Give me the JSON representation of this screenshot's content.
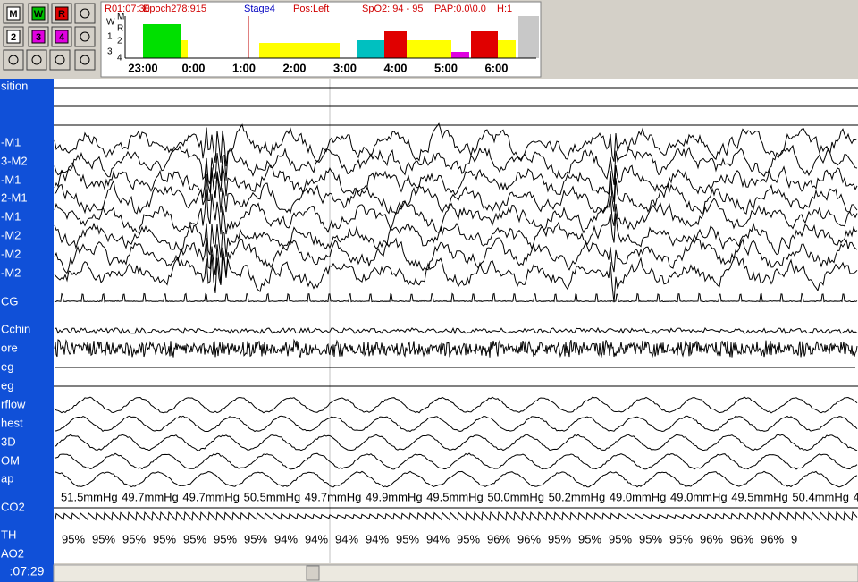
{
  "toolbar": {
    "buttons": [
      "M",
      "W",
      "R",
      "2",
      "3",
      "4"
    ]
  },
  "hypnogram": {
    "header": [
      "R01:07:30",
      "Epoch278:915",
      "Stage4",
      "Pos:Left",
      "SpO2: 94 - 95",
      "PAP:0.0\\0.0",
      "H:1"
    ],
    "stage_labels": [
      "W",
      "M",
      "R",
      "1",
      "2",
      "3",
      "4"
    ],
    "time_labels": [
      "23:00",
      "0:00",
      "1:00",
      "2:00",
      "3:00",
      "4:00",
      "5:00",
      "6:00"
    ]
  },
  "channels": [
    "sition",
    "-M1",
    "3-M2",
    "-M1",
    "2-M1",
    "-M1",
    "-M2",
    "-M2",
    "-M2",
    "CG",
    "Cchin",
    "ore",
    "eg",
    "eg",
    "rflow",
    "hest",
    "3D",
    "OM",
    "ap",
    "CO2",
    "TH",
    "AO2"
  ],
  "etco2_values": [
    "51.5mmHg",
    "49.7mmHg",
    "49.7mmHg",
    "50.5mmHg",
    "49.7mmHg",
    "49.9mmHg",
    "49.5mmHg",
    "50.0mmHg",
    "50.2mmHg",
    "49.0mmHg",
    "49.0mmHg",
    "49.5mmHg",
    "50.4mmHg",
    "4"
  ],
  "spo2_values": [
    "95%",
    "95%",
    "95%",
    "95%",
    "95%",
    "95%",
    "95%",
    "94%",
    "94%",
    "94%",
    "94%",
    "95%",
    "94%",
    "95%",
    "96%",
    "96%",
    "95%",
    "95%",
    "95%",
    "95%",
    "95%",
    "96%",
    "96%",
    "96%",
    "9"
  ],
  "clock": ":07:29"
}
